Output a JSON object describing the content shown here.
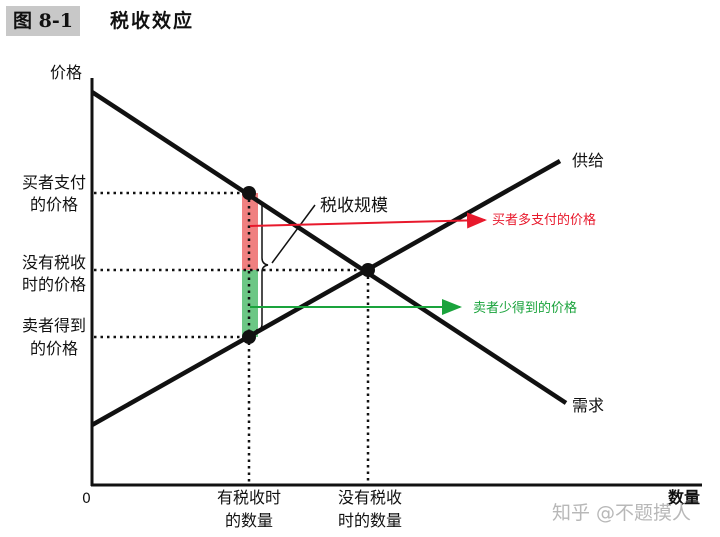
{
  "figure": {
    "tag": "图 8-1",
    "title": "税收效应"
  },
  "axes": {
    "y_label": "价格",
    "x_label": "数量",
    "origin": "0"
  },
  "curves": {
    "supply": "供给",
    "demand": "需求"
  },
  "price_labels": {
    "buyer_pays": [
      "买者支付",
      "的价格"
    ],
    "no_tax": [
      "没有税收",
      "时的价格"
    ],
    "seller_gets": [
      "卖者得到",
      "的价格"
    ]
  },
  "quantity_labels": {
    "with_tax": [
      "有税收时",
      "的数量"
    ],
    "no_tax": [
      "没有税收",
      "时的数量"
    ]
  },
  "annotations": {
    "tax_size": "税收规模",
    "buyer_extra": "买者多支付的价格",
    "seller_less": "卖者少得到的价格"
  },
  "colors": {
    "buyer": "#e8192c",
    "buyer_bar": "#f08080",
    "seller": "#1aa33c",
    "seller_bar": "#6cc785",
    "line": "#111111"
  },
  "watermark": "知乎 @不题摸人"
}
